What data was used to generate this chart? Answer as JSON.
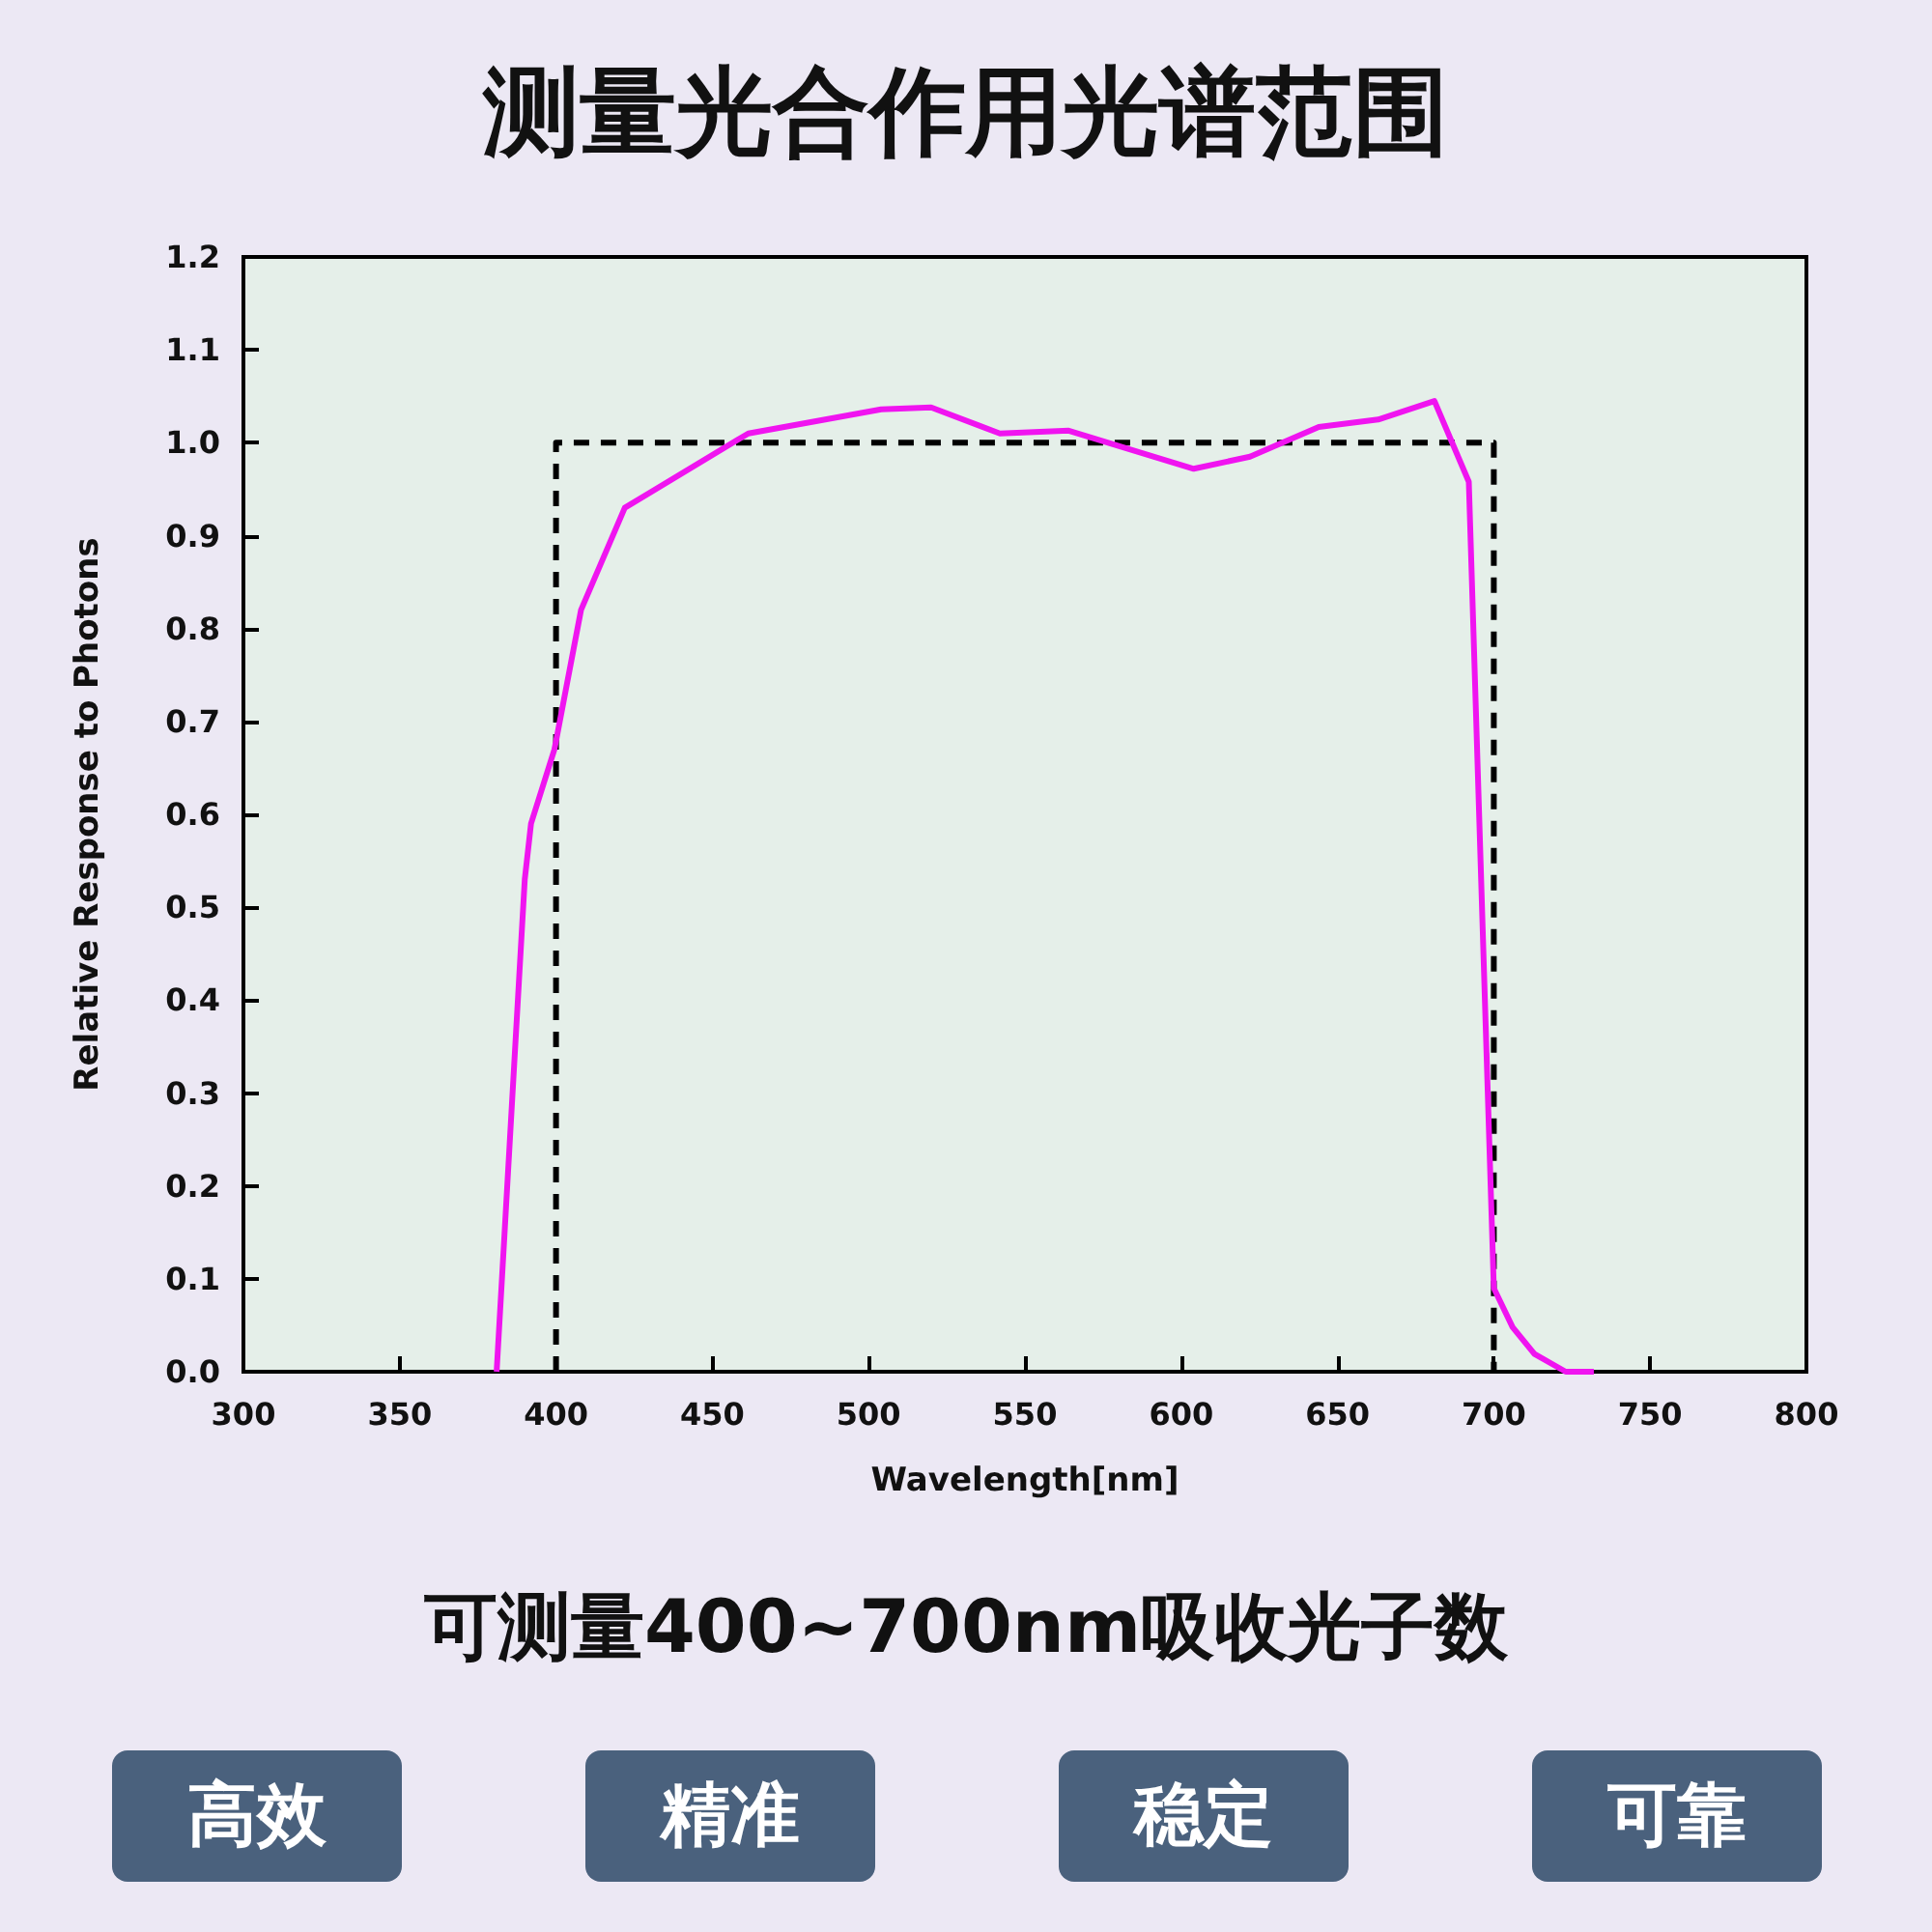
{
  "chart_data": {
    "type": "line",
    "title": "测量光合作用光谱范围",
    "subtitle": "可测量400~700nm吸收光子数",
    "xlabel": "Wavelength[nm]",
    "ylabel": "Relative Response to Photons",
    "series": [
      {
        "color": "#f014f0",
        "line_style": "solid",
        "x": [
          381,
          390,
          392,
          399.5,
          408,
          422,
          461.5,
          504,
          520,
          542,
          564,
          604,
          622,
          644,
          663,
          681,
          692,
          700,
          706,
          713,
          723,
          732
        ],
        "values": [
          0,
          0.53,
          0.59,
          0.67,
          0.82,
          0.93,
          1.01,
          1.036,
          1.038,
          1.01,
          1.013,
          0.972,
          0.985,
          1.017,
          1.025,
          1.045,
          0.958,
          0.09,
          0.048,
          0.019,
          0,
          0
        ]
      },
      {
        "color": "#000000",
        "line_style": "dashed",
        "x": [
          400,
          400,
          700,
          700
        ],
        "values": [
          0,
          1,
          1,
          0
        ]
      }
    ],
    "xlim": [
      300,
      800
    ],
    "xticks": [
      300,
      350,
      400,
      450,
      500,
      550,
      600,
      650,
      700,
      750,
      800
    ],
    "ylim": [
      0,
      1.2
    ],
    "yticks": [
      {
        "value": 0,
        "label": "0.0"
      },
      {
        "value": 0.1,
        "label": "0.1"
      },
      {
        "value": 0.2,
        "label": "0.2"
      },
      {
        "value": 0.3,
        "label": "0.3"
      },
      {
        "value": 0.4,
        "label": "0.4"
      },
      {
        "value": 0.5,
        "label": "0.5"
      },
      {
        "value": 0.6,
        "label": "0.6"
      },
      {
        "value": 0.7,
        "label": "0.7"
      },
      {
        "value": 0.8,
        "label": "0.8"
      },
      {
        "value": 0.9,
        "label": "0.9"
      },
      {
        "value": 1,
        "label": "1.0"
      },
      {
        "value": 1.1,
        "label": "1.1"
      },
      {
        "value": 1.2,
        "label": "1.2"
      }
    ],
    "grid": false,
    "marker": "none",
    "annotations": [
      "高效",
      "精准",
      "稳定",
      "可靠"
    ]
  }
}
